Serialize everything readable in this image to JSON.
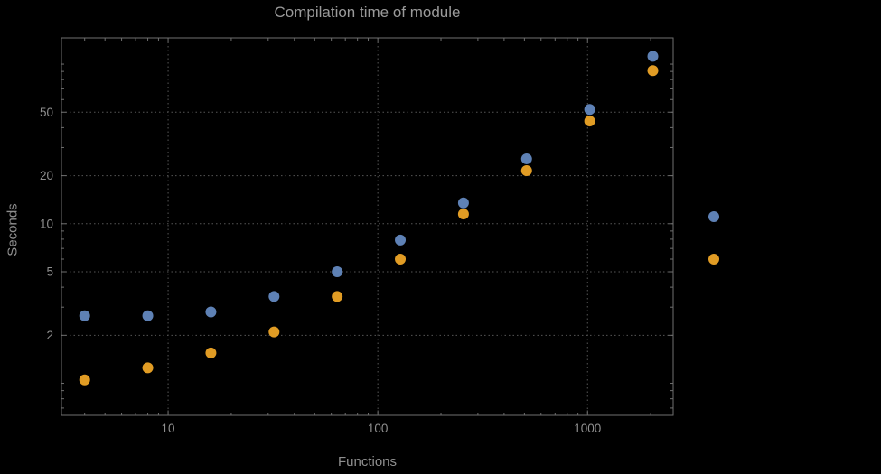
{
  "chart_data": {
    "type": "scatter",
    "title": "Compilation time of module",
    "xlabel": "Functions",
    "ylabel": "Seconds",
    "xscale": "log",
    "yscale": "log",
    "xlim": [
      3.1,
      2560
    ],
    "ylim": [
      0.63,
      146
    ],
    "grid": "dotted",
    "x": [
      4,
      8,
      16,
      32,
      64,
      128,
      256,
      512,
      1024,
      2048
    ],
    "series": [
      {
        "name": "series-1",
        "color": "#5e81b5",
        "values": [
          2.65,
          2.65,
          2.8,
          3.5,
          5.0,
          7.9,
          13.5,
          25.5,
          52,
          112
        ]
      },
      {
        "name": "series-2",
        "color": "#e19c24",
        "values": [
          1.05,
          1.25,
          1.55,
          2.1,
          3.5,
          6.0,
          11.5,
          21.5,
          44,
          91
        ]
      }
    ],
    "x_major_ticks": [
      10,
      100,
      1000
    ],
    "x_tick_labels": [
      "10",
      "100",
      "1000"
    ],
    "x_minor_ticks": [
      4,
      5,
      6,
      7,
      8,
      9,
      20,
      30,
      40,
      50,
      60,
      70,
      80,
      90,
      200,
      300,
      400,
      500,
      600,
      700,
      800,
      900,
      2000
    ],
    "y_major_ticks": [
      2,
      5,
      10,
      20,
      50
    ],
    "y_tick_labels": [
      "2",
      "5",
      "10",
      "20",
      "50"
    ],
    "y_minor_ticks": [
      0.7,
      0.8,
      0.9,
      1,
      3,
      4,
      6,
      7,
      8,
      9,
      30,
      40,
      60,
      70,
      80,
      90,
      100
    ],
    "x_gridlines": [
      10,
      100,
      1000
    ],
    "y_gridlines": [
      2,
      5,
      10,
      20,
      50
    ],
    "legend_markers": [
      {
        "name": "legend-marker-series-1",
        "color": "#5e81b5"
      },
      {
        "name": "legend-marker-series-2",
        "color": "#e19c24"
      }
    ]
  },
  "colors": {
    "background": "#000000",
    "text": "#8f8f8f",
    "title_text": "#9a9a9a",
    "frame": "#6f6f6f",
    "grid": "#565656",
    "series1": "#5e81b5",
    "series2": "#e19c24"
  }
}
